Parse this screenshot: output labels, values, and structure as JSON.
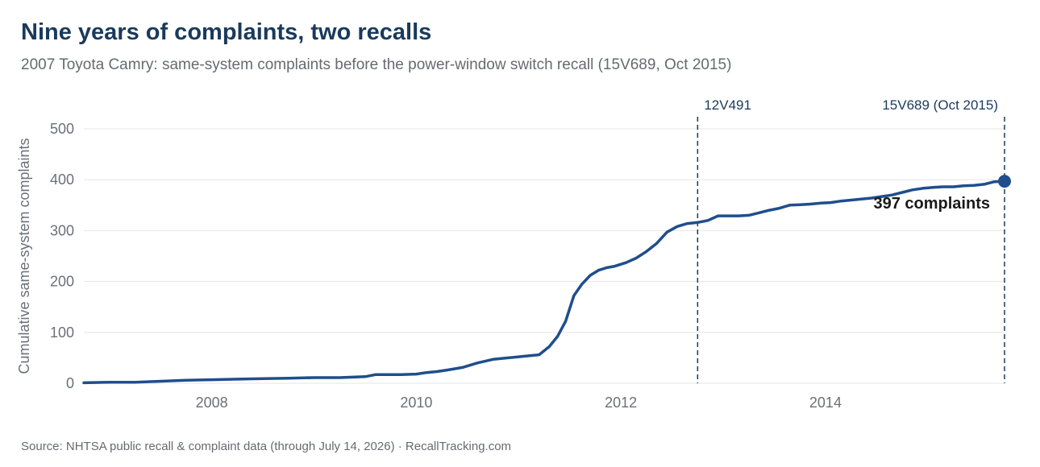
{
  "header": {
    "title": "Nine years of complaints, two recalls",
    "subtitle": "2007 Toyota Camry: same-system complaints before the power-window switch recall (15V689, Oct 2015)"
  },
  "footer": {
    "source": "Source: NHTSA public recall & complaint data (through July 14, 2026) · RecallTracking.com"
  },
  "colors": {
    "line": "#1f4e8c",
    "grid": "#e6e6e6",
    "axis_text": "#6b7078",
    "marker": "#1f4e8c",
    "recall_line": "#1a3a5c"
  },
  "chart_data": {
    "type": "line",
    "title": "Nine years of complaints, two recalls",
    "subtitle": "2007 Toyota Camry: same-system complaints before the power-window switch recall (15V689, Oct 2015)",
    "xlabel": "",
    "ylabel": "Cumulative same-system complaints",
    "xlim": [
      2006.75,
      2015.75
    ],
    "ylim": [
      0,
      500
    ],
    "xticks": [
      2008,
      2010,
      2012,
      2014
    ],
    "yticks": [
      0,
      100,
      200,
      300,
      400,
      500
    ],
    "grid": true,
    "series": [
      {
        "name": "",
        "x": [
          2006.75,
          2007.0,
          2007.25,
          2007.5,
          2007.75,
          2008.0,
          2008.25,
          2008.5,
          2008.75,
          2009.0,
          2009.25,
          2009.5,
          2009.6,
          2009.7,
          2009.85,
          2010.0,
          2010.1,
          2010.2,
          2010.3,
          2010.45,
          2010.6,
          2010.75,
          2010.9,
          2011.05,
          2011.2,
          2011.3,
          2011.38,
          2011.46,
          2011.54,
          2011.62,
          2011.7,
          2011.78,
          2011.86,
          2011.94,
          2012.05,
          2012.15,
          2012.25,
          2012.35,
          2012.45,
          2012.55,
          2012.65,
          2012.75,
          2012.85,
          2012.95,
          2013.05,
          2013.15,
          2013.25,
          2013.35,
          2013.45,
          2013.55,
          2013.65,
          2013.75,
          2013.85,
          2013.95,
          2014.05,
          2014.15,
          2014.25,
          2014.35,
          2014.45,
          2014.55,
          2014.65,
          2014.75,
          2014.85,
          2014.95,
          2015.05,
          2015.15,
          2015.25,
          2015.35,
          2015.45,
          2015.55,
          2015.65,
          2015.75
        ],
        "values": [
          1,
          2,
          2,
          4,
          6,
          7,
          8,
          9,
          10,
          11,
          11,
          13,
          17,
          17,
          17,
          18,
          21,
          23,
          26,
          31,
          40,
          47,
          50,
          53,
          56,
          72,
          92,
          122,
          172,
          195,
          212,
          222,
          227,
          230,
          237,
          246,
          259,
          275,
          297,
          308,
          314,
          316,
          320,
          329,
          329,
          329,
          330,
          335,
          340,
          344,
          350,
          351,
          352,
          354,
          355,
          358,
          360,
          362,
          364,
          367,
          370,
          375,
          380,
          383,
          385,
          386,
          386,
          388,
          389,
          391,
          396,
          397
        ]
      }
    ],
    "recalls": [
      {
        "label": "12V491",
        "x": 2012.75
      },
      {
        "label": "15V689 (Oct 2015)",
        "x": 2015.75
      }
    ],
    "endpoint": {
      "x": 2015.75,
      "y": 397,
      "label": "397 complaints"
    }
  }
}
